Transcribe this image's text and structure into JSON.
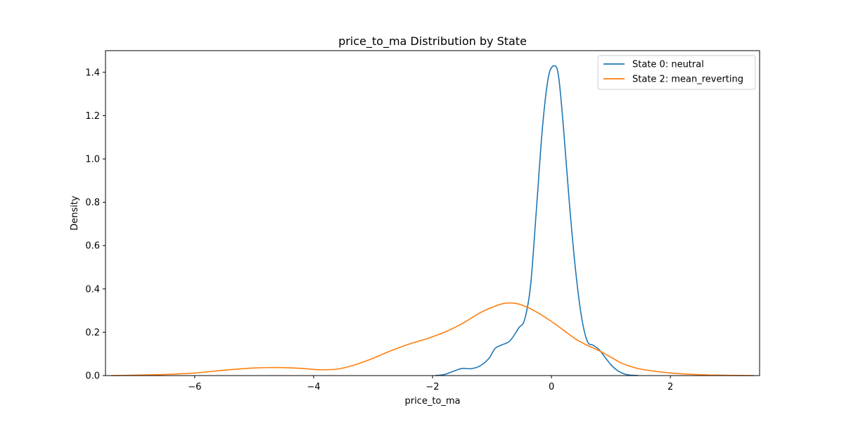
{
  "chart_data": {
    "type": "line",
    "title": "price_to_ma Distribution by State",
    "xlabel": "price_to_ma",
    "ylabel": "Density",
    "xlim": [
      -7.5,
      3.5
    ],
    "ylim": [
      0,
      1.5
    ],
    "xticks": [
      -6,
      -4,
      -2,
      0,
      2
    ],
    "xtick_labels": [
      "−6",
      "−4",
      "−2",
      "0",
      "2"
    ],
    "yticks": [
      0.0,
      0.2,
      0.4,
      0.6,
      0.8,
      1.0,
      1.2,
      1.4
    ],
    "ytick_labels": [
      "0.0",
      "0.2",
      "0.4",
      "0.6",
      "0.8",
      "1.0",
      "1.2",
      "1.4"
    ],
    "grid": false,
    "legend_position": "top-right",
    "series": [
      {
        "name": "State 0: neutral",
        "color": "#1f77b4",
        "x": [
          -1.95,
          -1.8,
          -1.65,
          -1.5,
          -1.35,
          -1.2,
          -1.05,
          -0.95,
          -0.85,
          -0.7,
          -0.55,
          -0.45,
          -0.35,
          -0.25,
          -0.15,
          -0.05,
          0.05,
          0.12,
          0.2,
          0.3,
          0.4,
          0.5,
          0.6,
          0.7,
          0.8,
          0.9,
          1.0,
          1.1,
          1.2,
          1.3,
          1.45
        ],
        "y": [
          0.0,
          0.005,
          0.02,
          0.033,
          0.032,
          0.045,
          0.08,
          0.125,
          0.14,
          0.16,
          0.22,
          0.26,
          0.42,
          0.78,
          1.15,
          1.38,
          1.43,
          1.38,
          1.15,
          0.8,
          0.5,
          0.28,
          0.16,
          0.14,
          0.12,
          0.085,
          0.05,
          0.025,
          0.01,
          0.003,
          0.0
        ]
      },
      {
        "name": "State 2: mean_reverting",
        "color": "#ff7f0e",
        "x": [
          -7.4,
          -7.0,
          -6.5,
          -6.0,
          -5.5,
          -5.0,
          -4.6,
          -4.2,
          -3.9,
          -3.6,
          -3.3,
          -3.0,
          -2.7,
          -2.4,
          -2.1,
          -1.8,
          -1.5,
          -1.2,
          -1.0,
          -0.8,
          -0.6,
          -0.4,
          -0.2,
          0.0,
          0.2,
          0.4,
          0.6,
          0.8,
          1.0,
          1.2,
          1.5,
          2.0,
          2.5,
          3.0,
          3.4
        ],
        "y": [
          0.0,
          0.002,
          0.005,
          0.012,
          0.025,
          0.035,
          0.037,
          0.033,
          0.027,
          0.03,
          0.05,
          0.08,
          0.115,
          0.145,
          0.17,
          0.2,
          0.24,
          0.29,
          0.315,
          0.333,
          0.333,
          0.315,
          0.285,
          0.25,
          0.21,
          0.17,
          0.14,
          0.115,
          0.085,
          0.055,
          0.03,
          0.012,
          0.004,
          0.001,
          0.0
        ]
      }
    ]
  }
}
